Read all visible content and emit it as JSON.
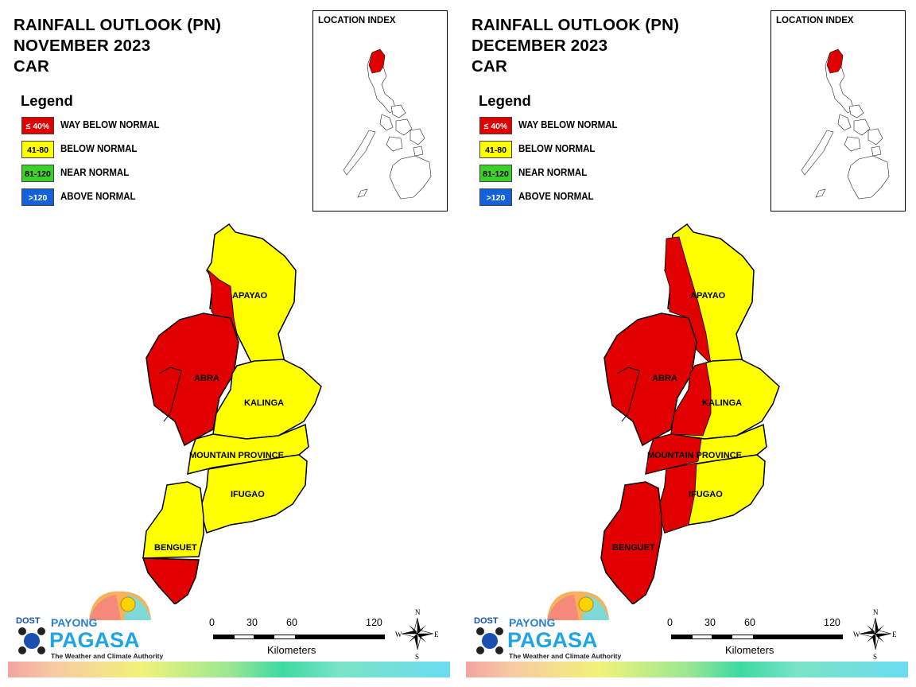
{
  "panels": [
    {
      "title_lines": [
        "RAINFALL OUTLOOK (PN)",
        "NOVEMBER 2023",
        "CAR"
      ],
      "legend": {
        "heading": "Legend",
        "items": [
          {
            "range": "≤ 40%",
            "label": "WAY BELOW NORMAL",
            "color": "#e00000",
            "text_color": "#ffffff"
          },
          {
            "range": "41-80",
            "label": "BELOW NORMAL",
            "color": "#ffff00",
            "text_color": "#000000"
          },
          {
            "range": "81-120",
            "label": "NEAR NORMAL",
            "color": "#3cd12a",
            "text_color": "#000000"
          },
          {
            "range": ">120",
            "label": "ABOVE NORMAL",
            "color": "#1462d8",
            "text_color": "#ffffff"
          }
        ]
      },
      "location_index_title": "LOCATION INDEX",
      "provinces": [
        {
          "name": "APAYAO",
          "category": "mixed: way below normal (west edge) / below normal"
        },
        {
          "name": "ABRA",
          "category": "way below normal"
        },
        {
          "name": "KALINGA",
          "category": "below normal"
        },
        {
          "name": "MOUNTAIN PROVINCE",
          "category": "below normal"
        },
        {
          "name": "IFUGAO",
          "category": "below normal"
        },
        {
          "name": "BENGUET",
          "category": "mixed: below normal / way below normal (south)"
        }
      ],
      "logo": {
        "dost": "DOST",
        "payong": "PAYONG",
        "pagasa": "PAGASA",
        "tagline": "The Weather and Climate Authority"
      },
      "scale": {
        "ticks": [
          "0",
          "30",
          "60",
          "120"
        ],
        "unit": "Kilometers"
      },
      "compass": {
        "n": "N",
        "s": "S",
        "e": "E",
        "w": "W"
      }
    },
    {
      "title_lines": [
        "RAINFALL OUTLOOK (PN)",
        "DECEMBER 2023",
        "CAR"
      ],
      "legend": {
        "heading": "Legend",
        "items": [
          {
            "range": "≤ 40%",
            "label": "WAY BELOW NORMAL",
            "color": "#e00000",
            "text_color": "#ffffff"
          },
          {
            "range": "41-80",
            "label": "BELOW NORMAL",
            "color": "#ffff00",
            "text_color": "#000000"
          },
          {
            "range": "81-120",
            "label": "NEAR NORMAL",
            "color": "#3cd12a",
            "text_color": "#000000"
          },
          {
            "range": ">120",
            "label": "ABOVE NORMAL",
            "color": "#1462d8",
            "text_color": "#ffffff"
          }
        ]
      },
      "location_index_title": "LOCATION INDEX",
      "provinces": [
        {
          "name": "APAYAO",
          "category": "mixed: way below normal (west) / below normal"
        },
        {
          "name": "ABRA",
          "category": "way below normal"
        },
        {
          "name": "KALINGA",
          "category": "mixed: way below normal (west) / below normal"
        },
        {
          "name": "MOUNTAIN PROVINCE",
          "category": "mixed: way below normal (west) / below normal"
        },
        {
          "name": "IFUGAO",
          "category": "mixed: way below normal (west) / below normal"
        },
        {
          "name": "BENGUET",
          "category": "way below normal"
        }
      ],
      "logo": {
        "dost": "DOST",
        "payong": "PAYONG",
        "pagasa": "PAGASA",
        "tagline": "The Weather and Climate Authority"
      },
      "scale": {
        "ticks": [
          "0",
          "30",
          "60",
          "120"
        ],
        "unit": "Kilometers"
      },
      "compass": {
        "n": "N",
        "s": "S",
        "e": "E",
        "w": "W"
      }
    }
  ],
  "colors": {
    "way_below": "#e00000",
    "below": "#ffff00",
    "near": "#3cd12a",
    "above": "#1462d8"
  }
}
